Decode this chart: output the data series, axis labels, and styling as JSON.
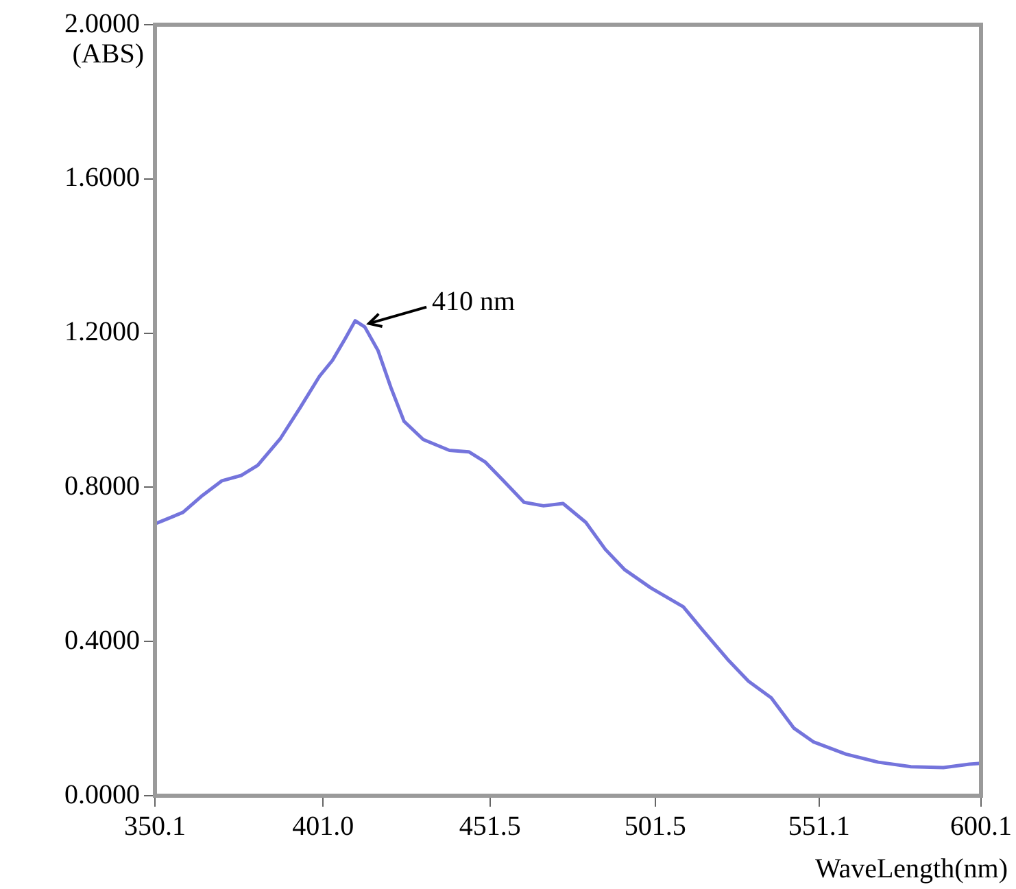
{
  "chart_data": {
    "type": "line",
    "xlabel": "WaveLength(nm)",
    "ylabel": "(ABS)",
    "annotations": [
      {
        "text": "410 nm",
        "x": 410.7,
        "y": 1.232
      }
    ],
    "xlim": [
      350.1,
      600.1
    ],
    "xticks": [
      350.1,
      {
        "value": 401.0,
        "label": "401.0"
      },
      451.5,
      501.5,
      551.1,
      600.1
    ],
    "ylim": [
      0,
      2
    ],
    "yticks": [
      {
        "value": 0,
        "label": "0.0000"
      },
      {
        "value": 0.4,
        "label": "0.4000"
      },
      {
        "value": 0.8,
        "label": "0.8000"
      },
      {
        "value": 1.2,
        "label": "1.2000"
      },
      {
        "value": 1.6,
        "label": "1.6000"
      },
      {
        "value": 2,
        "label": "2.0000"
      }
    ],
    "grid": false,
    "legend": false,
    "marker": "none",
    "line_style": "solid",
    "series": [
      {
        "color": "#7474dc",
        "x": [
          350.1,
          358.6,
          364.5,
          370.4,
          376.3,
          381.2,
          388.1,
          394.0,
          399.9,
          403.8,
          407.7,
          410.7,
          413.6,
          417.6,
          421.5,
          425.5,
          431.3,
          439.2,
          445.1,
          450.0,
          455.9,
          461.8,
          467.7,
          473.6,
          480.5,
          486.4,
          492.3,
          500.2,
          510.0,
          515.9,
          523.8,
          529.7,
          536.6,
          543.5,
          549.3,
          559.2,
          569.0,
          578.9,
          588.7,
          596.6,
          600.1
        ],
        "values": [
          0.705,
          0.735,
          0.779,
          0.817,
          0.831,
          0.857,
          0.927,
          1.006,
          1.088,
          1.129,
          1.186,
          1.232,
          1.216,
          1.155,
          1.059,
          0.971,
          0.924,
          0.896,
          0.892,
          0.866,
          0.814,
          0.761,
          0.752,
          0.758,
          0.709,
          0.639,
          0.586,
          0.539,
          0.49,
          0.429,
          0.35,
          0.297,
          0.254,
          0.175,
          0.14,
          0.108,
          0.087,
          0.075,
          0.073,
          0.082,
          0.084
        ]
      }
    ]
  }
}
